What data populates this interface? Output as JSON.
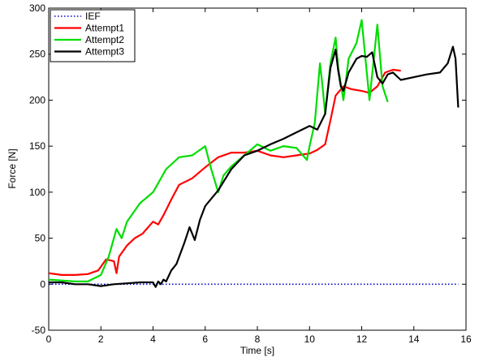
{
  "chart_data": {
    "type": "line",
    "xlabel": "Time [s]",
    "ylabel": "Force [N]",
    "xlim": [
      0,
      16
    ],
    "ylim": [
      -50,
      300
    ],
    "xticks": [
      0,
      2,
      4,
      6,
      8,
      10,
      12,
      14,
      16
    ],
    "yticks": [
      -50,
      0,
      50,
      100,
      150,
      200,
      250,
      300
    ],
    "grid": false,
    "legend_position": "top-left",
    "series": [
      {
        "name": "IEF",
        "color": "#0000cc",
        "style": "dotted",
        "x": [
          0,
          15.7
        ],
        "y": [
          0,
          0
        ]
      },
      {
        "name": "Attempt1",
        "color": "#ff0000",
        "style": "solid",
        "x": [
          0,
          0.5,
          1.0,
          1.5,
          1.9,
          2.2,
          2.5,
          2.6,
          2.7,
          3.0,
          3.3,
          3.6,
          4.0,
          4.2,
          4.4,
          4.7,
          5.0,
          5.5,
          6.0,
          6.5,
          7.0,
          7.5,
          8.0,
          8.5,
          9.0,
          9.5,
          10.0,
          10.3,
          10.6,
          10.8,
          11.0,
          11.3,
          11.6,
          12.0,
          12.3,
          12.6,
          12.9,
          13.2,
          13.5
        ],
        "y": [
          12,
          10,
          10,
          11,
          15,
          27,
          25,
          12,
          30,
          42,
          50,
          55,
          68,
          65,
          75,
          92,
          108,
          115,
          127,
          138,
          143,
          143,
          145,
          140,
          138,
          140,
          142,
          146,
          152,
          178,
          205,
          215,
          212,
          210,
          208,
          215,
          230,
          233,
          232
        ]
      },
      {
        "name": "Attempt2",
        "color": "#00dd00",
        "style": "solid",
        "x": [
          0,
          0.5,
          1.0,
          1.5,
          2.0,
          2.3,
          2.6,
          2.8,
          3.0,
          3.5,
          4.0,
          4.5,
          5.0,
          5.5,
          6.0,
          6.2,
          6.5,
          6.7,
          7.0,
          7.5,
          8.0,
          8.5,
          9.0,
          9.5,
          9.9,
          10.0,
          10.2,
          10.4,
          10.5,
          10.6,
          10.8,
          11.0,
          11.1,
          11.3,
          11.5,
          11.8,
          12.0,
          12.3,
          12.6,
          12.8,
          13.0
        ],
        "y": [
          5,
          4,
          3,
          3,
          10,
          30,
          60,
          50,
          68,
          88,
          100,
          125,
          138,
          140,
          150,
          128,
          100,
          118,
          128,
          140,
          152,
          145,
          150,
          148,
          135,
          150,
          175,
          240,
          215,
          185,
          240,
          268,
          235,
          200,
          245,
          262,
          287,
          200,
          282,
          215,
          198
        ]
      },
      {
        "name": "Attempt3",
        "color": "#000000",
        "style": "solid",
        "x": [
          0,
          0.5,
          1.0,
          1.5,
          2.0,
          2.5,
          3.0,
          3.5,
          4.0,
          4.1,
          4.2,
          4.3,
          4.4,
          4.5,
          4.7,
          4.9,
          5.2,
          5.4,
          5.6,
          5.8,
          6.0,
          6.5,
          7.0,
          7.5,
          8.0,
          8.5,
          9.0,
          9.5,
          10.0,
          10.3,
          10.6,
          10.8,
          11.0,
          11.1,
          11.2,
          11.3,
          11.5,
          11.8,
          12.0,
          12.2,
          12.4,
          12.6,
          12.8,
          13.0,
          13.2,
          13.5,
          14.0,
          14.5,
          15.0,
          15.3,
          15.5,
          15.6,
          15.7
        ],
        "y": [
          2,
          2,
          0,
          0,
          -2,
          0,
          1,
          2,
          2,
          -3,
          3,
          0,
          5,
          3,
          15,
          22,
          45,
          62,
          48,
          70,
          85,
          102,
          125,
          140,
          145,
          152,
          158,
          165,
          172,
          168,
          185,
          235,
          255,
          232,
          215,
          210,
          230,
          245,
          248,
          247,
          252,
          225,
          218,
          228,
          230,
          222,
          225,
          228,
          230,
          240,
          258,
          245,
          192
        ]
      }
    ]
  }
}
